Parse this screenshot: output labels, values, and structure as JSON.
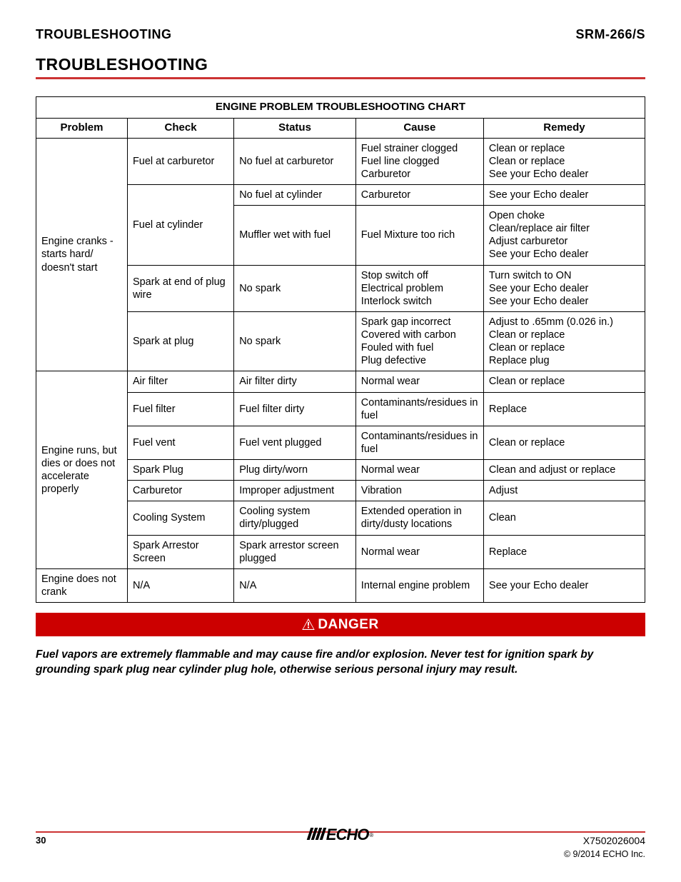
{
  "header": {
    "left": "TROUBLESHOOTING",
    "right": "SRM-266/S"
  },
  "section_title": "TROUBLESHOOTING",
  "table": {
    "title": "ENGINE PROBLEM TROUBLESHOOTING CHART",
    "columns": [
      "Problem",
      "Check",
      "Status",
      "Cause",
      "Remedy"
    ],
    "col_classes": [
      "col-problem",
      "col-check",
      "col-status",
      "col-cause",
      "col-remedy"
    ],
    "groups": [
      {
        "problem": "Engine cranks - starts hard/ doesn't start",
        "rowspan": 5,
        "rows": [
          {
            "check": "Fuel at carburetor",
            "check_rowspan": 1,
            "status": "No fuel at carburetor",
            "cause": "Fuel strainer clogged\nFuel line clogged\nCarburetor",
            "remedy": "Clean or replace\nClean or replace\nSee your Echo dealer"
          },
          {
            "check": "Fuel at cylinder",
            "check_rowspan": 2,
            "status": "No fuel at cylinder",
            "cause": "Carburetor",
            "remedy": "See your Echo dealer"
          },
          {
            "check": null,
            "status": "Muffler wet with fuel",
            "cause": "Fuel Mixture too rich",
            "remedy": "Open choke\nClean/replace air filter\nAdjust carburetor\nSee your Echo dealer"
          },
          {
            "check": "Spark at end of plug wire",
            "check_rowspan": 1,
            "status": "No spark",
            "cause": "Stop switch off\nElectrical problem\nInterlock switch",
            "remedy": "Turn switch to ON\nSee your Echo dealer\nSee your Echo dealer"
          },
          {
            "check": "Spark at plug",
            "check_rowspan": 1,
            "status": "No spark",
            "cause": "Spark gap incorrect\nCovered with carbon\nFouled with fuel\nPlug defective",
            "remedy": "Adjust to .65mm (0.026 in.)\nClean or replace\nClean or replace\nReplace plug"
          }
        ]
      },
      {
        "problem": "Engine runs, but dies or does not accelerate properly",
        "rowspan": 7,
        "rows": [
          {
            "check": "Air filter",
            "check_rowspan": 1,
            "status": "Air filter dirty",
            "cause": "Normal wear",
            "remedy": "Clean or replace"
          },
          {
            "check": "Fuel filter",
            "check_rowspan": 1,
            "status": "Fuel filter dirty",
            "cause": "Contaminants/residues in fuel",
            "remedy": "Replace"
          },
          {
            "check": "Fuel vent",
            "check_rowspan": 1,
            "status": "Fuel vent plugged",
            "cause": "Contaminants/residues in fuel",
            "remedy": "Clean or replace"
          },
          {
            "check": "Spark Plug",
            "check_rowspan": 1,
            "status": "Plug dirty/worn",
            "cause": "Normal wear",
            "remedy": "Clean and adjust or replace"
          },
          {
            "check": "Carburetor",
            "check_rowspan": 1,
            "status": "Improper adjustment",
            "cause": "Vibration",
            "remedy": "Adjust"
          },
          {
            "check": "Cooling System",
            "check_rowspan": 1,
            "status": "Cooling system dirty/plugged",
            "cause": "Extended operation in dirty/dusty locations",
            "remedy": "Clean"
          },
          {
            "check": "Spark Arrestor Screen",
            "check_rowspan": 1,
            "status": "Spark arrestor screen plugged",
            "cause": "Normal wear",
            "remedy": "Replace"
          }
        ]
      },
      {
        "problem": "Engine does not crank",
        "rowspan": 1,
        "rows": [
          {
            "check": "N/A",
            "check_rowspan": 1,
            "status": "N/A",
            "cause": "Internal engine problem",
            "remedy": "See your Echo dealer"
          }
        ]
      }
    ]
  },
  "danger": {
    "label": "DANGER",
    "text": "Fuel vapors are extremely flammable and may cause fire and/or explosion. Never test for ignition spark by grounding spark plug near cylinder plug hole, otherwise serious personal injury may result."
  },
  "footer": {
    "page": "30",
    "docnum": "X7502026004",
    "copyright": "© 9/2014 ECHO Inc.",
    "logo_text": "ECHO"
  },
  "colors": {
    "accent": "#cc3333",
    "danger_bg": "#cc0000",
    "text": "#000000",
    "bg": "#ffffff"
  }
}
